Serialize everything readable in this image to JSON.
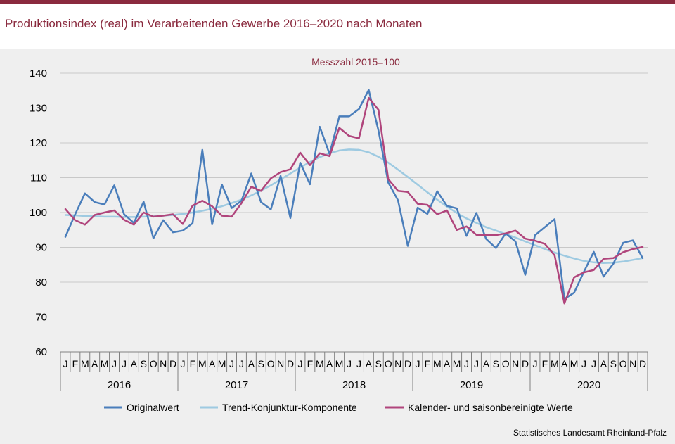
{
  "header": {
    "title": "Produktionsindex (real) im Verarbeitenden Gewerbe 2016–2020 nach Monaten"
  },
  "source": "Statistisches Landesamt Rheinland-Pfalz",
  "chart_data": {
    "type": "line",
    "subtitle": "Messzahl 2015=100",
    "ylim": [
      60,
      140
    ],
    "yticks": [
      60,
      70,
      80,
      90,
      100,
      110,
      120,
      130,
      140
    ],
    "grid": true,
    "legend_position": "bottom",
    "month_labels": [
      "J",
      "F",
      "M",
      "A",
      "M",
      "J",
      "J",
      "A",
      "S",
      "O",
      "N",
      "D"
    ],
    "years": [
      "2016",
      "2017",
      "2018",
      "2019",
      "2020"
    ],
    "series": [
      {
        "name": "Originalwert",
        "color": "#4a7ebb",
        "values": [
          93.0,
          99.5,
          105.5,
          103.0,
          102.3,
          107.8,
          99.5,
          97.0,
          103.1,
          92.6,
          97.8,
          94.3,
          94.8,
          96.9,
          118.0,
          96.6,
          108.0,
          101.3,
          103.4,
          111.2,
          103.0,
          100.9,
          110.5,
          98.4,
          114.3,
          108.1,
          124.6,
          116.8,
          127.6,
          127.6,
          129.7,
          135.2,
          123.5,
          108.6,
          103.5,
          90.4,
          101.4,
          99.6,
          106.1,
          101.9,
          101.2,
          93.3,
          99.9,
          92.4,
          89.8,
          94.0,
          91.7,
          82.1,
          93.5,
          95.8,
          98.1,
          75.2,
          77.0,
          83.0,
          88.7,
          81.6,
          85.3,
          91.3,
          92.0,
          86.9
        ]
      },
      {
        "name": "Trend-Konjunktur-Komponente",
        "color": "#9ecae1",
        "values": [
          99.3,
          99.2,
          99.0,
          98.9,
          98.8,
          98.8,
          98.7,
          98.7,
          98.8,
          98.9,
          99.1,
          99.3,
          99.6,
          100.0,
          100.5,
          101.1,
          101.8,
          102.7,
          103.7,
          104.9,
          106.3,
          107.8,
          109.5,
          111.2,
          112.9,
          114.5,
          115.9,
          117.0,
          117.8,
          118.1,
          118.0,
          117.3,
          116.0,
          114.3,
          112.3,
          110.2,
          108.0,
          105.8,
          103.7,
          101.7,
          99.9,
          98.3,
          97.0,
          95.8,
          94.8,
          93.8,
          92.8,
          91.7,
          90.6,
          89.5,
          88.5,
          87.6,
          86.8,
          86.1,
          85.7,
          85.5,
          85.6,
          85.9,
          86.4,
          86.9
        ]
      },
      {
        "name": "Kalender- und saisonbereinigte Werte",
        "color": "#b0457c",
        "values": [
          101.0,
          97.8,
          96.5,
          99.3,
          100.0,
          100.6,
          97.9,
          96.5,
          100.0,
          98.8,
          99.1,
          99.5,
          96.7,
          102.0,
          103.4,
          101.8,
          99.1,
          98.8,
          102.7,
          107.4,
          106.2,
          109.8,
          111.6,
          112.4,
          117.2,
          113.6,
          117.0,
          116.2,
          124.3,
          122.0,
          121.3,
          132.9,
          129.5,
          109.6,
          106.2,
          105.9,
          102.5,
          102.2,
          99.5,
          100.6,
          95.0,
          96.0,
          93.6,
          93.6,
          93.5,
          94.0,
          94.8,
          92.5,
          91.9,
          91.0,
          87.7,
          73.9,
          81.4,
          82.8,
          83.5,
          86.7,
          86.9,
          88.6,
          89.5,
          90.1
        ]
      }
    ]
  }
}
